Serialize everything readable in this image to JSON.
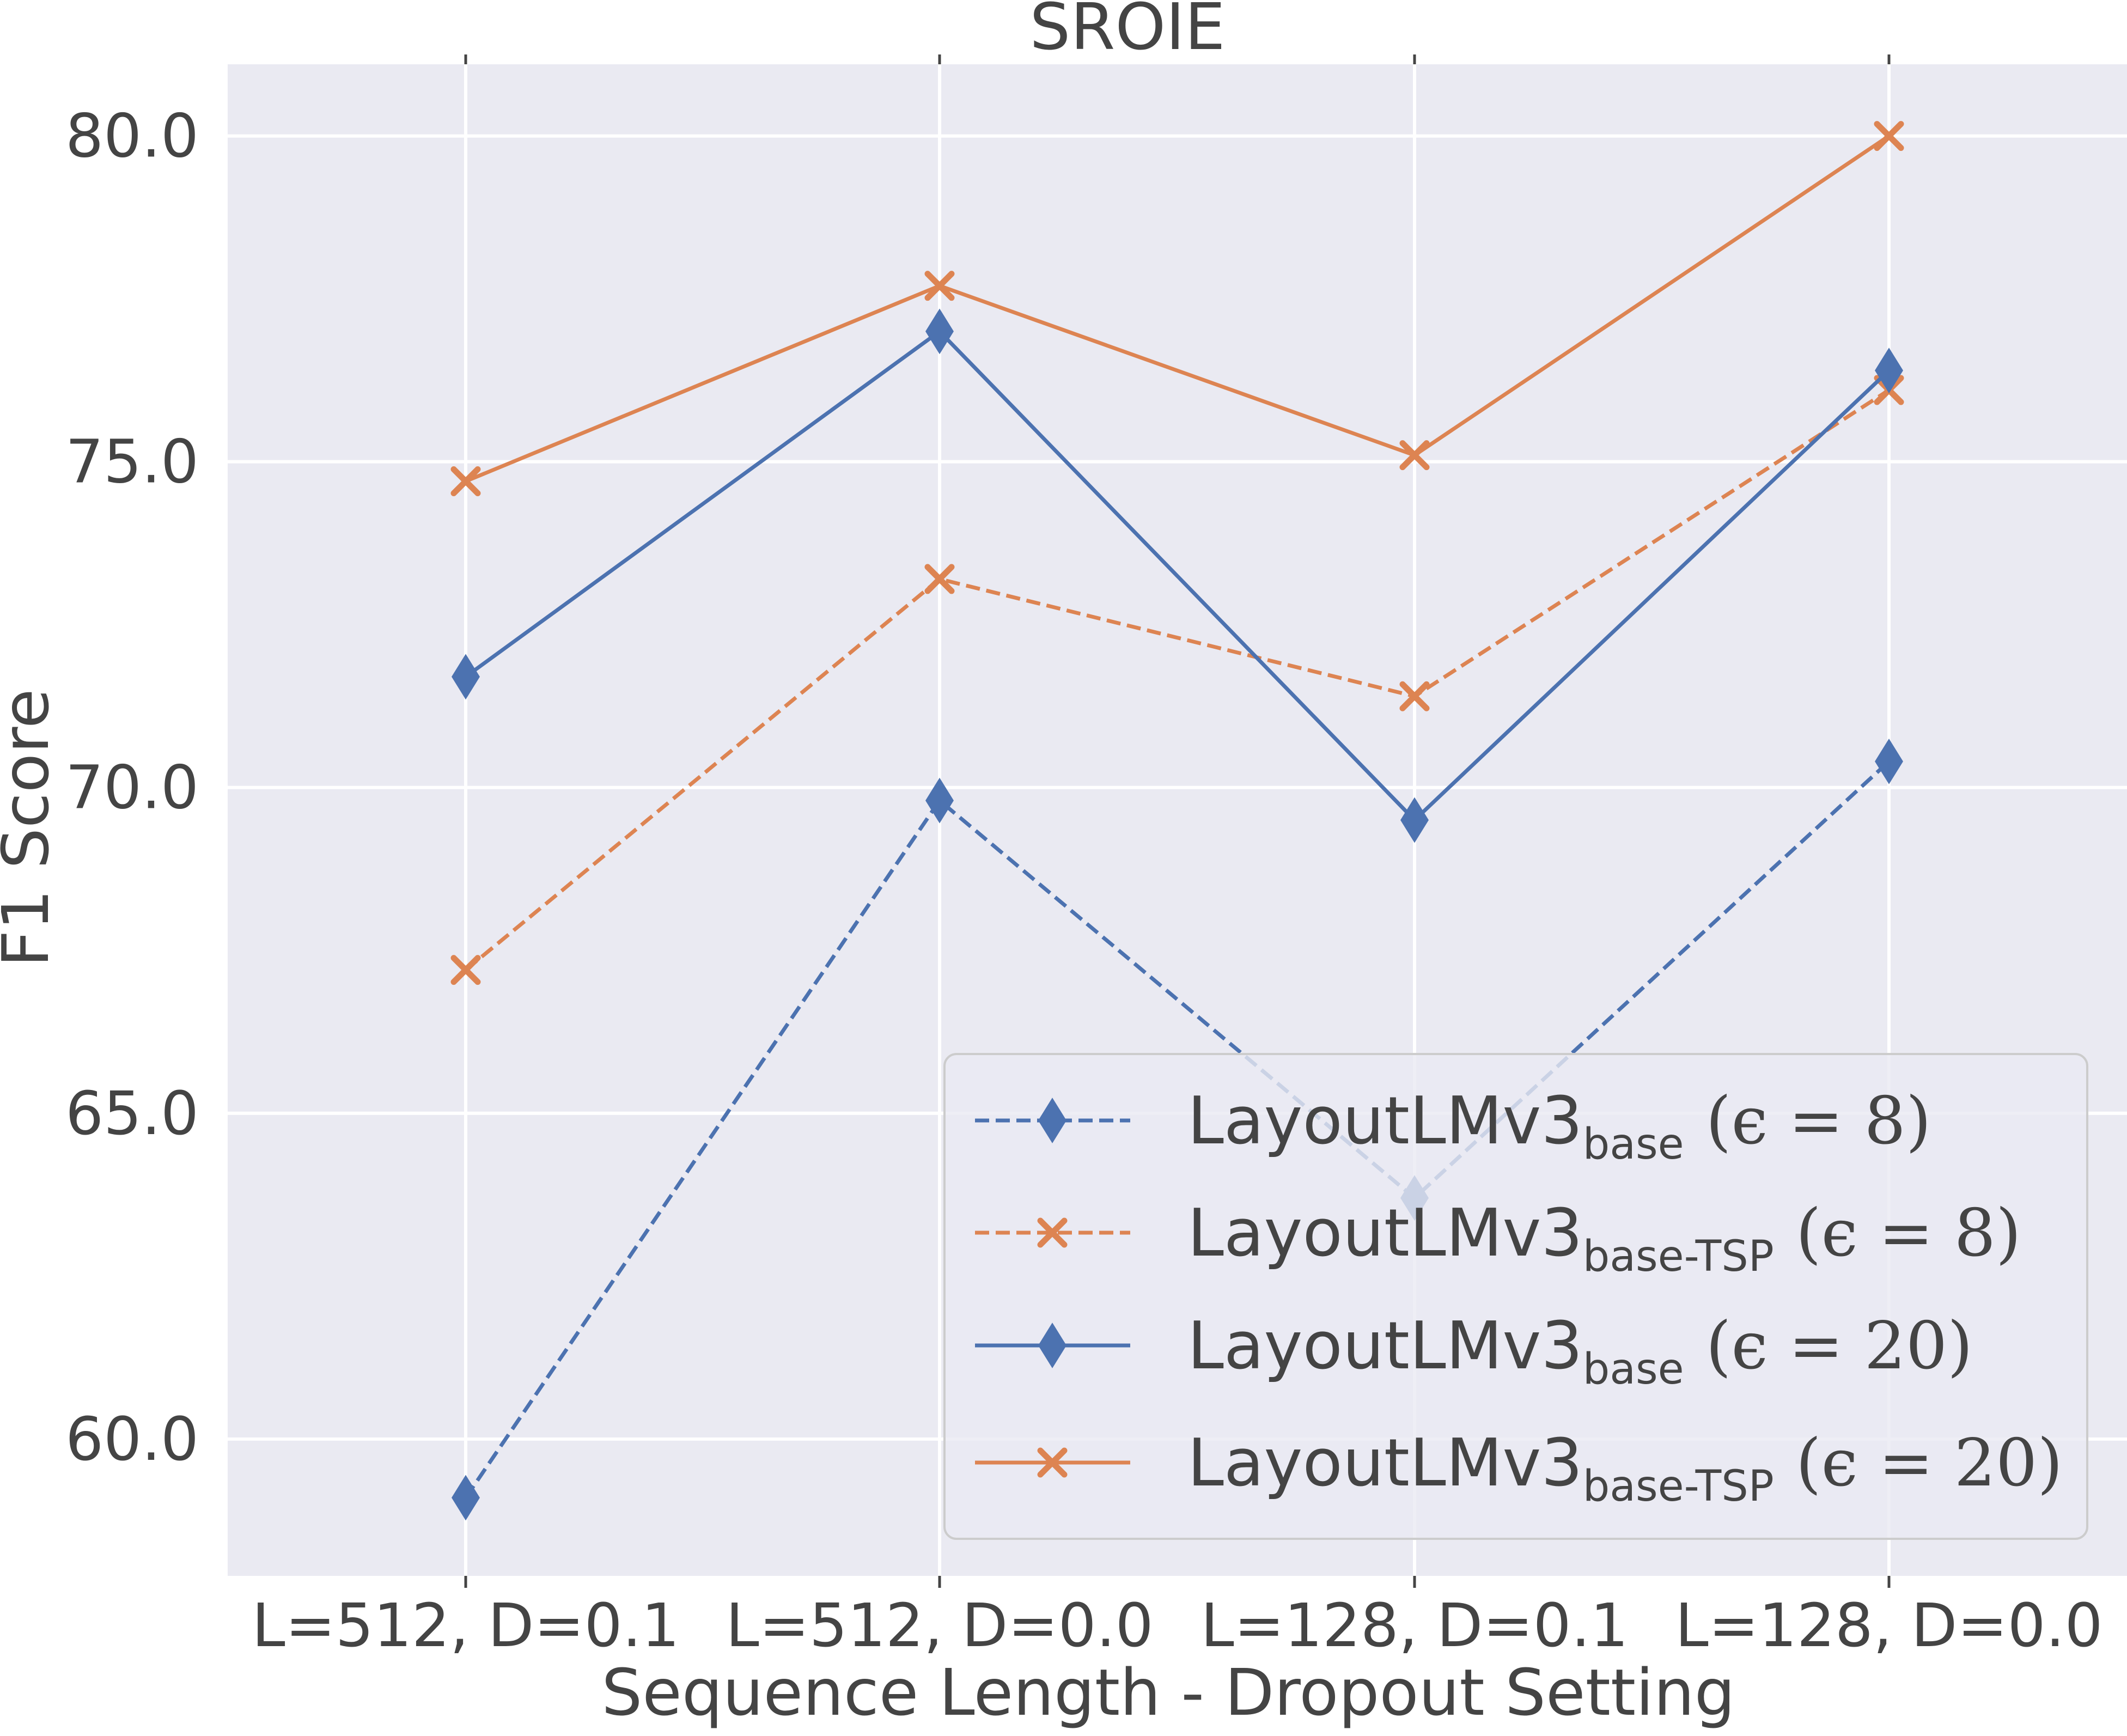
{
  "chart_data": {
    "type": "line",
    "title": "SROIE",
    "xlabel": "Sequence Length - Dropout Setting",
    "ylabel": "F1 Score",
    "categories": [
      "L=512, D=0.1",
      "L=512, D=0.0",
      "L=128, D=0.1",
      "L=128, D=0.0"
    ],
    "ylim": [
      57.9,
      81.1
    ],
    "yticks": [
      60.0,
      65.0,
      70.0,
      75.0,
      80.0
    ],
    "ytick_labels": [
      "60.0",
      "65.0",
      "70.0",
      "75.0",
      "80.0"
    ],
    "grid": true,
    "legend_position": "lower-right",
    "series": [
      {
        "name": "LayoutLMv3_base (ε = 8)",
        "legend_main": "LayoutLMv3",
        "legend_sub": "base",
        "legend_suffix": "",
        "legend_math": "(ϵ = 8)",
        "color": "#4c72b0",
        "marker": "diamond",
        "linestyle": "dashed",
        "values": [
          59.1,
          69.8,
          63.7,
          70.4
        ]
      },
      {
        "name": "LayoutLMv3_base-TSP (ε = 8)",
        "legend_main": "LayoutLMv3",
        "legend_sub": "base",
        "legend_suffix": "-TSP",
        "legend_math": "(ϵ = 8)",
        "color": "#dd8452",
        "marker": "x",
        "linestyle": "dashed",
        "values": [
          67.2,
          73.2,
          71.4,
          76.1
        ]
      },
      {
        "name": "LayoutLMv3_base (ε = 20)",
        "legend_main": "LayoutLMv3",
        "legend_sub": "base",
        "legend_suffix": "",
        "legend_math": "(ϵ = 20)",
        "color": "#4c72b0",
        "marker": "diamond",
        "linestyle": "solid",
        "values": [
          71.7,
          77.0,
          69.5,
          76.4
        ]
      },
      {
        "name": "LayoutLMv3_base-TSP (ε = 20)",
        "legend_main": "LayoutLMv3",
        "legend_sub": "base",
        "legend_suffix": "-TSP",
        "legend_math": "(ϵ = 20)",
        "color": "#dd8452",
        "marker": "x",
        "linestyle": "solid",
        "values": [
          74.7,
          77.7,
          75.1,
          80.0
        ]
      }
    ]
  }
}
